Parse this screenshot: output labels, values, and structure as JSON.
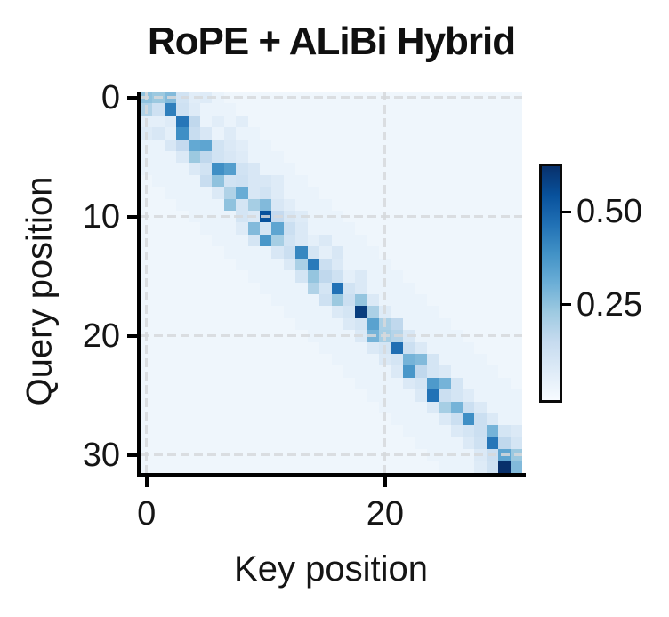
{
  "chart_data": {
    "type": "heatmap",
    "title": "RoPE + ALiBi Hybrid",
    "xlabel": "Key position",
    "ylabel": "Query position",
    "n": 32,
    "x_range": [
      0,
      31
    ],
    "y_range": [
      0,
      31
    ],
    "y_axis_inverted": true,
    "grid": "dashed, at tick positions, light gray, drawn over cells",
    "x_ticks": [
      {
        "value": 0,
        "label": "0"
      },
      {
        "value": 20,
        "label": "20"
      }
    ],
    "y_ticks": [
      {
        "value": 0,
        "label": "0"
      },
      {
        "value": 10,
        "label": "10"
      },
      {
        "value": 20,
        "label": "20"
      },
      {
        "value": 30,
        "label": "30"
      }
    ],
    "colormap": "Blues",
    "colormap_stops": [
      [
        247,
        251,
        255
      ],
      [
        222,
        235,
        247
      ],
      [
        198,
        219,
        239
      ],
      [
        158,
        202,
        225
      ],
      [
        107,
        174,
        214
      ],
      [
        66,
        146,
        198
      ],
      [
        33,
        113,
        181
      ],
      [
        8,
        81,
        156
      ],
      [
        8,
        48,
        107
      ]
    ],
    "vmin": 0,
    "vmax": 0.63,
    "colorbar": {
      "position": "right",
      "ticks": [
        {
          "value": 0.5,
          "label": "0.50"
        },
        {
          "value": 0.25,
          "label": "0.25"
        }
      ]
    },
    "matrix_sparse": {
      "comment": "attention-style matrix; value = cells override, else near_diag_value if |i-j|<=near_diag_width, else halo_value if |i-j|<=halo_width, else background_value",
      "background_value": 0.025,
      "halo_width": 6,
      "halo_value": 0.04,
      "near_diag_width": 2,
      "near_diag_value": 0.06,
      "cells": [
        [
          0,
          0,
          0.26
        ],
        [
          0,
          1,
          0.24
        ],
        [
          0,
          2,
          0.28
        ],
        [
          0,
          3,
          0.12
        ],
        [
          0,
          4,
          0.07
        ],
        [
          0,
          5,
          0.08
        ],
        [
          1,
          0,
          0.2
        ],
        [
          1,
          1,
          0.13
        ],
        [
          1,
          2,
          0.44
        ],
        [
          1,
          3,
          0.13
        ],
        [
          1,
          4,
          0.08
        ],
        [
          2,
          2,
          0.08
        ],
        [
          2,
          3,
          0.46
        ],
        [
          2,
          4,
          0.17
        ],
        [
          2,
          6,
          0.07
        ],
        [
          2,
          8,
          0.07
        ],
        [
          3,
          0,
          0.08
        ],
        [
          3,
          1,
          0.1
        ],
        [
          3,
          3,
          0.4
        ],
        [
          3,
          4,
          0.15
        ],
        [
          3,
          5,
          0.1
        ],
        [
          3,
          7,
          0.08
        ],
        [
          4,
          2,
          0.1
        ],
        [
          4,
          3,
          0.16
        ],
        [
          4,
          4,
          0.33
        ],
        [
          4,
          5,
          0.34
        ],
        [
          4,
          6,
          0.12
        ],
        [
          4,
          7,
          0.09
        ],
        [
          4,
          8,
          0.07
        ],
        [
          5,
          3,
          0.09
        ],
        [
          5,
          4,
          0.24
        ],
        [
          5,
          5,
          0.17
        ],
        [
          5,
          6,
          0.12
        ],
        [
          5,
          7,
          0.1
        ],
        [
          5,
          8,
          0.08
        ],
        [
          6,
          4,
          0.09
        ],
        [
          6,
          5,
          0.12
        ],
        [
          6,
          6,
          0.4
        ],
        [
          6,
          7,
          0.36
        ],
        [
          6,
          8,
          0.12
        ],
        [
          6,
          9,
          0.1
        ],
        [
          7,
          5,
          0.15
        ],
        [
          7,
          6,
          0.26
        ],
        [
          7,
          7,
          0.12
        ],
        [
          7,
          8,
          0.13
        ],
        [
          7,
          9,
          0.1
        ],
        [
          7,
          10,
          0.1
        ],
        [
          7,
          11,
          0.08
        ],
        [
          8,
          6,
          0.09
        ],
        [
          8,
          7,
          0.2
        ],
        [
          8,
          8,
          0.32
        ],
        [
          8,
          9,
          0.1
        ],
        [
          8,
          10,
          0.12
        ],
        [
          8,
          11,
          0.08
        ],
        [
          9,
          7,
          0.26
        ],
        [
          9,
          8,
          0.11
        ],
        [
          9,
          9,
          0.22
        ],
        [
          9,
          10,
          0.28
        ],
        [
          9,
          11,
          0.1
        ],
        [
          9,
          12,
          0.07
        ],
        [
          10,
          8,
          0.11
        ],
        [
          10,
          9,
          0.09
        ],
        [
          10,
          10,
          0.55
        ],
        [
          10,
          11,
          0.16
        ],
        [
          10,
          12,
          0.1
        ],
        [
          10,
          13,
          0.08
        ],
        [
          11,
          8,
          0.08
        ],
        [
          11,
          9,
          0.28
        ],
        [
          11,
          10,
          0.11
        ],
        [
          11,
          11,
          0.34
        ],
        [
          11,
          12,
          0.14
        ],
        [
          11,
          13,
          0.09
        ],
        [
          12,
          9,
          0.11
        ],
        [
          12,
          10,
          0.38
        ],
        [
          12,
          11,
          0.22
        ],
        [
          12,
          12,
          0.12
        ],
        [
          12,
          13,
          0.09
        ],
        [
          12,
          15,
          0.09
        ],
        [
          13,
          11,
          0.1
        ],
        [
          13,
          12,
          0.14
        ],
        [
          13,
          13,
          0.42
        ],
        [
          13,
          14,
          0.11
        ],
        [
          13,
          16,
          0.1
        ],
        [
          14,
          12,
          0.09
        ],
        [
          14,
          13,
          0.21
        ],
        [
          14,
          14,
          0.45
        ],
        [
          14,
          15,
          0.14
        ],
        [
          14,
          16,
          0.09
        ],
        [
          15,
          13,
          0.11
        ],
        [
          15,
          14,
          0.25
        ],
        [
          15,
          15,
          0.17
        ],
        [
          15,
          16,
          0.13
        ],
        [
          15,
          18,
          0.09
        ],
        [
          16,
          14,
          0.2
        ],
        [
          16,
          15,
          0.11
        ],
        [
          16,
          16,
          0.47
        ],
        [
          16,
          17,
          0.12
        ],
        [
          16,
          18,
          0.09
        ],
        [
          17,
          15,
          0.13
        ],
        [
          17,
          16,
          0.24
        ],
        [
          17,
          17,
          0.14
        ],
        [
          17,
          18,
          0.25
        ],
        [
          17,
          19,
          0.09
        ],
        [
          18,
          16,
          0.09
        ],
        [
          18,
          17,
          0.11
        ],
        [
          18,
          18,
          0.6
        ],
        [
          18,
          19,
          0.21
        ],
        [
          18,
          20,
          0.08
        ],
        [
          19,
          17,
          0.09
        ],
        [
          19,
          18,
          0.11
        ],
        [
          19,
          19,
          0.35
        ],
        [
          19,
          20,
          0.21
        ],
        [
          19,
          21,
          0.17
        ],
        [
          20,
          18,
          0.09
        ],
        [
          20,
          19,
          0.3
        ],
        [
          20,
          20,
          0.22
        ],
        [
          20,
          21,
          0.19
        ],
        [
          20,
          22,
          0.1
        ],
        [
          21,
          19,
          0.09
        ],
        [
          21,
          20,
          0.11
        ],
        [
          21,
          21,
          0.48
        ],
        [
          21,
          22,
          0.14
        ],
        [
          21,
          23,
          0.09
        ],
        [
          22,
          20,
          0.09
        ],
        [
          22,
          21,
          0.11
        ],
        [
          22,
          22,
          0.3
        ],
        [
          22,
          23,
          0.28
        ],
        [
          22,
          24,
          0.11
        ],
        [
          23,
          21,
          0.09
        ],
        [
          23,
          22,
          0.38
        ],
        [
          23,
          23,
          0.17
        ],
        [
          23,
          24,
          0.11
        ],
        [
          23,
          25,
          0.09
        ],
        [
          24,
          22,
          0.09
        ],
        [
          24,
          23,
          0.11
        ],
        [
          24,
          24,
          0.37
        ],
        [
          24,
          25,
          0.3
        ],
        [
          24,
          26,
          0.11
        ],
        [
          25,
          23,
          0.09
        ],
        [
          25,
          24,
          0.47
        ],
        [
          25,
          25,
          0.14
        ],
        [
          25,
          26,
          0.11
        ],
        [
          25,
          27,
          0.08
        ],
        [
          26,
          24,
          0.09
        ],
        [
          26,
          25,
          0.22
        ],
        [
          26,
          26,
          0.3
        ],
        [
          26,
          27,
          0.14
        ],
        [
          26,
          28,
          0.09
        ],
        [
          27,
          25,
          0.09
        ],
        [
          27,
          26,
          0.14
        ],
        [
          27,
          27,
          0.4
        ],
        [
          27,
          28,
          0.14
        ],
        [
          27,
          29,
          0.09
        ],
        [
          28,
          26,
          0.09
        ],
        [
          28,
          27,
          0.11
        ],
        [
          28,
          28,
          0.14
        ],
        [
          28,
          29,
          0.3
        ],
        [
          28,
          30,
          0.11
        ],
        [
          28,
          31,
          0.09
        ],
        [
          29,
          27,
          0.09
        ],
        [
          29,
          28,
          0.13
        ],
        [
          29,
          29,
          0.46
        ],
        [
          29,
          30,
          0.17
        ],
        [
          29,
          31,
          0.11
        ],
        [
          30,
          28,
          0.09
        ],
        [
          30,
          29,
          0.14
        ],
        [
          30,
          30,
          0.34
        ],
        [
          30,
          31,
          0.24
        ],
        [
          31,
          28,
          0.08
        ],
        [
          31,
          29,
          0.13
        ],
        [
          31,
          30,
          0.63
        ],
        [
          31,
          31,
          0.28
        ]
      ]
    }
  }
}
